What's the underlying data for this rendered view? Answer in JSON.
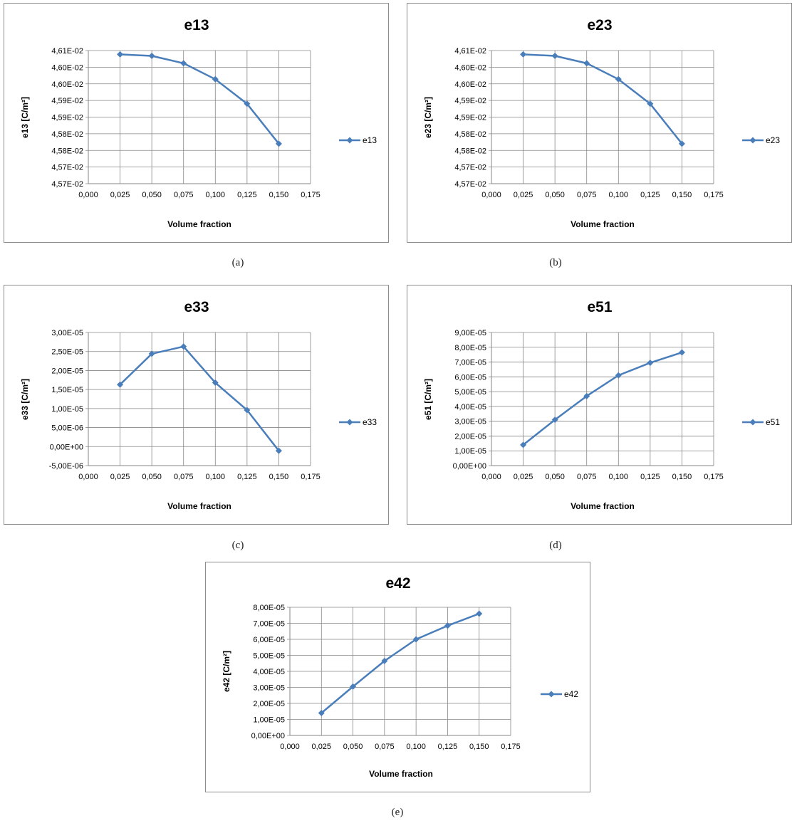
{
  "colors": {
    "series": "#4a7ebb",
    "grid": "#868686",
    "axis": "#868686"
  },
  "chart_data": [
    {
      "type": "line",
      "caption": "(a)",
      "title": "e13",
      "xlabel": "Volume fraction",
      "ylabel": "e13 [C/m²]",
      "xlim": [
        0,
        0.175
      ],
      "xticks": [
        "0,000",
        "0,025",
        "0,050",
        "0,075",
        "0,100",
        "0,125",
        "0,150",
        "0,175"
      ],
      "ylim": [
        4.565,
        4.61
      ],
      "yticks": [
        "4,57E-02",
        "4,57E-02",
        "4,58E-02",
        "4,58E-02",
        "4,59E-02",
        "4,59E-02",
        "4,60E-02",
        "4,60E-02",
        "4,61E-02"
      ],
      "grid": true,
      "legend_position": "right",
      "series": [
        {
          "name": "e13",
          "x": [
            0.025,
            0.05,
            0.075,
            0.1,
            0.125,
            0.15
          ],
          "y": [
            4.6087,
            4.6082,
            4.6057,
            4.6003,
            4.592,
            4.5785
          ]
        }
      ]
    },
    {
      "type": "line",
      "caption": "(b)",
      "title": "e23",
      "xlabel": "Volume fraction",
      "ylabel": "e23 [C/m²]",
      "xlim": [
        0,
        0.175
      ],
      "xticks": [
        "0,000",
        "0,025",
        "0,050",
        "0,075",
        "0,100",
        "0,125",
        "0,150",
        "0,175"
      ],
      "ylim": [
        4.565,
        4.61
      ],
      "yticks": [
        "4,57E-02",
        "4,57E-02",
        "4,58E-02",
        "4,58E-02",
        "4,59E-02",
        "4,59E-02",
        "4,60E-02",
        "4,60E-02",
        "4,61E-02"
      ],
      "grid": true,
      "legend_position": "right",
      "series": [
        {
          "name": "e23",
          "x": [
            0.025,
            0.05,
            0.075,
            0.1,
            0.125,
            0.15
          ],
          "y": [
            4.6087,
            4.6082,
            4.6057,
            4.6003,
            4.592,
            4.5785
          ]
        }
      ]
    },
    {
      "type": "line",
      "caption": "(c)",
      "title": "e33",
      "xlabel": "Volume fraction",
      "ylabel": "e33 [C/m²]",
      "xlim": [
        0,
        0.175
      ],
      "xticks": [
        "0,000",
        "0,025",
        "0,050",
        "0,075",
        "0,100",
        "0,125",
        "0,150",
        "0,175"
      ],
      "ylim": [
        -5e-06,
        3e-05
      ],
      "yticks": [
        "-5,00E-06",
        "0,00E+00",
        "5,00E-06",
        "1,00E-05",
        "1,50E-05",
        "2,00E-05",
        "2,50E-05",
        "3,00E-05"
      ],
      "grid": true,
      "legend_position": "right",
      "series": [
        {
          "name": "e33",
          "x": [
            0.025,
            0.05,
            0.075,
            0.1,
            0.125,
            0.15
          ],
          "y": [
            1.63e-05,
            2.44e-05,
            2.63e-05,
            1.68e-05,
            9.6e-06,
            -1.1e-06
          ]
        }
      ]
    },
    {
      "type": "line",
      "caption": "(d)",
      "title": "e51",
      "xlabel": "Volume fraction",
      "ylabel": "e51 [C/m²]",
      "xlim": [
        0,
        0.175
      ],
      "xticks": [
        "0,000",
        "0,025",
        "0,050",
        "0,075",
        "0,100",
        "0,125",
        "0,150",
        "0,175"
      ],
      "ylim": [
        0,
        9e-05
      ],
      "yticks": [
        "0,00E+00",
        "1,00E-05",
        "2,00E-05",
        "3,00E-05",
        "4,00E-05",
        "5,00E-05",
        "6,00E-05",
        "7,00E-05",
        "8,00E-05",
        "9,00E-05"
      ],
      "grid": true,
      "legend_position": "right",
      "series": [
        {
          "name": "e51",
          "x": [
            0.025,
            0.05,
            0.075,
            0.1,
            0.125,
            0.15
          ],
          "y": [
            1.4e-05,
            3.1e-05,
            4.7e-05,
            6.1e-05,
            6.95e-05,
            7.65e-05
          ]
        }
      ]
    },
    {
      "type": "line",
      "caption": "(e)",
      "title": "e42",
      "xlabel": "Volume fraction",
      "ylabel": "e42 [C/m²]",
      "xlim": [
        0,
        0.175
      ],
      "xticks": [
        "0,000",
        "0,025",
        "0,050",
        "0,075",
        "0,100",
        "0,125",
        "0,150",
        "0,175"
      ],
      "ylim": [
        0,
        8e-05
      ],
      "yticks": [
        "0,00E+00",
        "1,00E-05",
        "2,00E-05",
        "3,00E-05",
        "4,00E-05",
        "5,00E-05",
        "6,00E-05",
        "7,00E-05",
        "8,00E-05"
      ],
      "grid": true,
      "legend_position": "right",
      "series": [
        {
          "name": "e42",
          "x": [
            0.025,
            0.05,
            0.075,
            0.1,
            0.125,
            0.15
          ],
          "y": [
            1.4e-05,
            3.05e-05,
            4.65e-05,
            6e-05,
            6.85e-05,
            7.6e-05
          ]
        }
      ]
    }
  ]
}
